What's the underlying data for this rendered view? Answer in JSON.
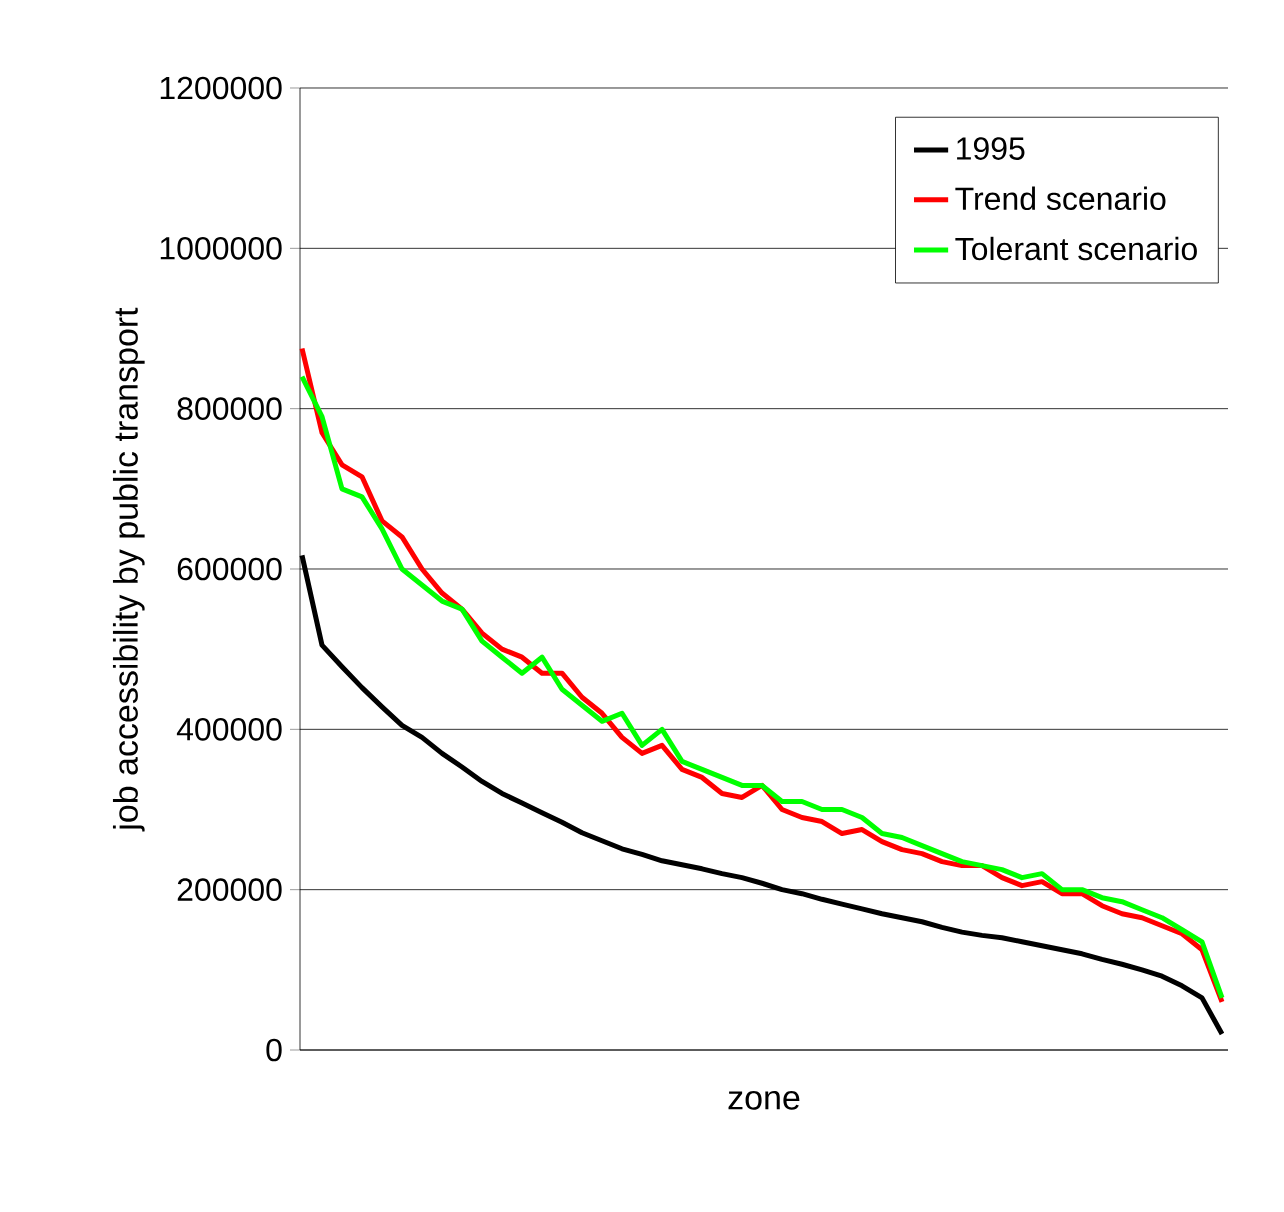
{
  "chart_data": {
    "type": "line",
    "xlabel": "zone",
    "ylabel": "job accessibility by public transport",
    "categories": [
      null,
      null,
      null,
      null,
      null,
      null,
      null,
      null,
      null,
      null,
      null,
      null,
      null,
      null,
      null,
      null,
      null,
      null,
      null,
      null,
      null,
      null,
      null,
      null,
      null,
      null,
      null,
      null,
      null,
      null,
      null,
      null,
      null,
      null,
      null,
      null,
      null,
      null,
      null,
      null,
      null,
      null,
      null,
      null,
      null,
      null,
      null
    ],
    "ylim": [
      0,
      1200000
    ],
    "yticks": [
      0,
      200000,
      400000,
      600000,
      800000,
      1000000,
      1200000
    ],
    "grid": "y",
    "legend": "top right",
    "tick_labels": "y",
    "series": [
      {
        "name": "1995",
        "color": "#000000",
        "values": [
          617000,
          505000,
          478000,
          452000,
          428000,
          405000,
          390000,
          370000,
          353000,
          335000,
          320000,
          308000,
          296000,
          284000,
          271000,
          261000,
          251000,
          244000,
          236000,
          231000,
          226000,
          220000,
          215000,
          208000,
          200000,
          195000,
          188000,
          182000,
          176000,
          170000,
          165000,
          160000,
          153000,
          147000,
          143000,
          140000,
          135000,
          130000,
          125000,
          120000,
          113000,
          107000,
          100000,
          92000,
          80000,
          65000,
          20000
        ]
      },
      {
        "name": "Trend scenario",
        "color": "#ff0000",
        "values": [
          875000,
          770000,
          730000,
          715000,
          660000,
          640000,
          600000,
          570000,
          550000,
          520000,
          500000,
          490000,
          470000,
          470000,
          440000,
          420000,
          390000,
          370000,
          380000,
          350000,
          340000,
          320000,
          315000,
          330000,
          300000,
          290000,
          285000,
          270000,
          275000,
          260000,
          250000,
          245000,
          235000,
          230000,
          230000,
          215000,
          205000,
          210000,
          195000,
          195000,
          180000,
          170000,
          165000,
          155000,
          145000,
          125000,
          60000
        ]
      },
      {
        "name": "Tolerant scenario",
        "color": "#00ff00",
        "values": [
          840000,
          790000,
          700000,
          690000,
          650000,
          600000,
          580000,
          560000,
          550000,
          510000,
          490000,
          470000,
          490000,
          450000,
          430000,
          410000,
          420000,
          380000,
          400000,
          360000,
          350000,
          340000,
          330000,
          330000,
          310000,
          310000,
          300000,
          300000,
          290000,
          270000,
          265000,
          255000,
          245000,
          235000,
          230000,
          225000,
          215000,
          220000,
          200000,
          200000,
          190000,
          185000,
          175000,
          165000,
          150000,
          135000,
          65000
        ]
      }
    ]
  }
}
